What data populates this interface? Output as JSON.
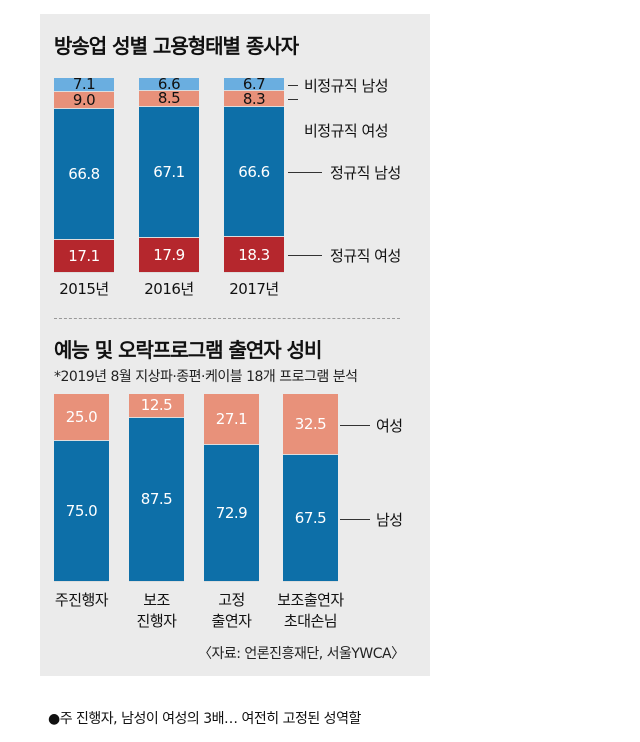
{
  "chart_data": [
    {
      "type": "bar",
      "stacked": true,
      "title": "방송업 성별 고용형태별 종사자",
      "categories": [
        "2015년",
        "2016년",
        "2017년"
      ],
      "series": [
        {
          "name": "정규직 여성",
          "values": [
            17.1,
            17.9,
            18.3
          ],
          "color": "#b5272d"
        },
        {
          "name": "정규직 남성",
          "values": [
            66.8,
            67.1,
            66.6
          ],
          "color": "#0d6fa8"
        },
        {
          "name": "비정규직 여성",
          "values": [
            9.0,
            8.5,
            8.3
          ],
          "color": "#e8917a"
        },
        {
          "name": "비정규직 남성",
          "values": [
            7.1,
            6.6,
            6.7
          ],
          "color": "#6aaee0"
        }
      ],
      "ylim": [
        0,
        100
      ]
    },
    {
      "type": "bar",
      "stacked": true,
      "title": "예능 및 오락프로그램 출연자 성비",
      "subtitle": "*2019년 8월 지상파·종편·케이블 18개 프로그램 분석",
      "categories": [
        "주진행자",
        "보조\n진행자",
        "고정\n출연자",
        "보조출연자\n초대손님"
      ],
      "series": [
        {
          "name": "남성",
          "values": [
            75.0,
            87.5,
            72.9,
            67.5
          ],
          "color": "#0d6fa8"
        },
        {
          "name": "여성",
          "values": [
            25.0,
            12.5,
            27.1,
            32.5
          ],
          "color": "#e8917a"
        }
      ],
      "ylim": [
        0,
        100
      ],
      "source": "〈자료: 언론진흥재단, 서울YWCA〉"
    }
  ],
  "caption": "●주 진행자, 남성이 여성의 3배… 여전히 고정된 성역할"
}
